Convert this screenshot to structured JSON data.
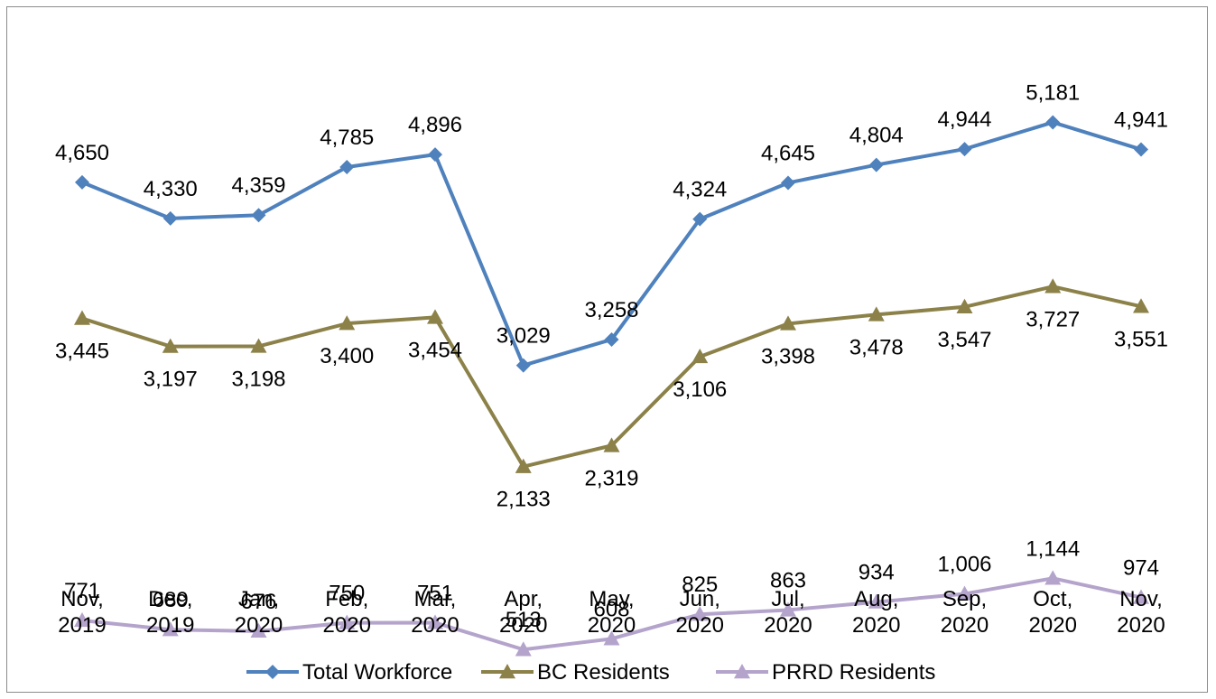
{
  "chart_data": {
    "type": "line",
    "categories": [
      [
        "Nov,",
        "2019"
      ],
      [
        "Dec,",
        "2019"
      ],
      [
        "Jan,",
        "2020"
      ],
      [
        "Feb,",
        "2020"
      ],
      [
        "Mar,",
        "2020"
      ],
      [
        "Apr,",
        "2020"
      ],
      [
        "May,",
        "2020"
      ],
      [
        "Jun,",
        "2020"
      ],
      [
        "Jul,",
        "2020"
      ],
      [
        "Aug,",
        "2020"
      ],
      [
        "Sep,",
        "2020"
      ],
      [
        "Oct,",
        "2020"
      ],
      [
        "Nov,",
        "2020"
      ]
    ],
    "series": [
      {
        "name": "Total Workforce",
        "color": "#4f81bd",
        "marker": "diamond",
        "values": [
          4650,
          4330,
          4359,
          4785,
          4896,
          3029,
          3258,
          4324,
          4645,
          4804,
          4944,
          5181,
          4941
        ],
        "labels": [
          "4,650",
          "4,330",
          "4,359",
          "4,785",
          "4,896",
          "3,029",
          "3,258",
          "4,324",
          "4,645",
          "4,804",
          "4,944",
          "5,181",
          "4,941"
        ],
        "label_position": "above"
      },
      {
        "name": "BC Residents",
        "color": "#8b8149",
        "marker": "triangle",
        "values": [
          3445,
          3197,
          3198,
          3400,
          3454,
          2133,
          2319,
          3106,
          3398,
          3478,
          3547,
          3727,
          3551
        ],
        "labels": [
          "3,445",
          "3,197",
          "3,198",
          "3,400",
          "3,454",
          "2,133",
          "2,319",
          "3,106",
          "3,398",
          "3,478",
          "3,547",
          "3,727",
          "3,551"
        ],
        "label_position": "below"
      },
      {
        "name": "PRRD Residents",
        "color": "#b4a4cc",
        "marker": "triangle",
        "values": [
          771,
          689,
          676,
          750,
          751,
          513,
          608,
          825,
          863,
          934,
          1006,
          1144,
          974
        ],
        "labels": [
          "771",
          "689",
          "676",
          "750",
          "751",
          "513",
          "608",
          "825",
          "863",
          "934",
          "1,006",
          "1,144",
          "974"
        ],
        "label_position": "above"
      }
    ],
    "ylim": [
      0,
      6200
    ],
    "grid": false,
    "legend": "bottom"
  }
}
